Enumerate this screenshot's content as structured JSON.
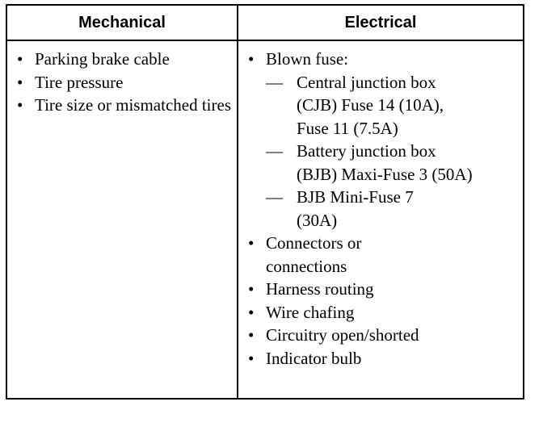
{
  "headers": [
    "Mechanical",
    "Electrical"
  ],
  "mechanical": [
    "Parking brake cable",
    "Tire pressure",
    "Tire size or mismatched tires"
  ],
  "electrical": {
    "blown_fuse": "Blown fuse:",
    "fuses": [
      "Central junction box (CJB) Fuse 14 (10A), Fuse 11 (7.5A)",
      "Battery junction box (BJB) Maxi-Fuse 3 (50A)",
      "BJB Mini-Fuse 7 (30A)"
    ],
    "items": [
      "Connectors or connections",
      "Harness routing",
      "Wire chafing",
      "Circuitry open/shorted",
      "Indicator bulb"
    ]
  }
}
